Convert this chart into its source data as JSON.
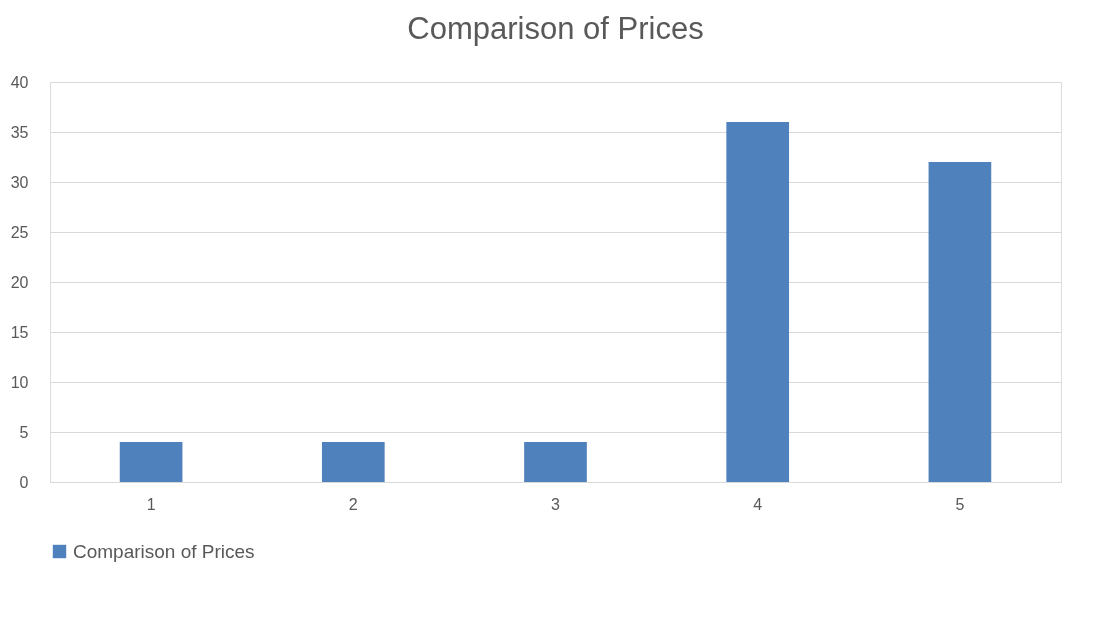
{
  "chart_data": {
    "type": "bar",
    "title": "Comparison of Prices",
    "categories": [
      "1",
      "2",
      "3",
      "4",
      "5"
    ],
    "series": [
      {
        "name": "Comparison of Prices",
        "color": "#4f81bd",
        "values": [
          4,
          4,
          4,
          36,
          32
        ]
      }
    ],
    "ylim": [
      0,
      40
    ],
    "yticks": [
      0,
      5,
      10,
      15,
      20,
      25,
      30,
      35,
      40
    ],
    "grid": "y",
    "legend": "bottom"
  }
}
